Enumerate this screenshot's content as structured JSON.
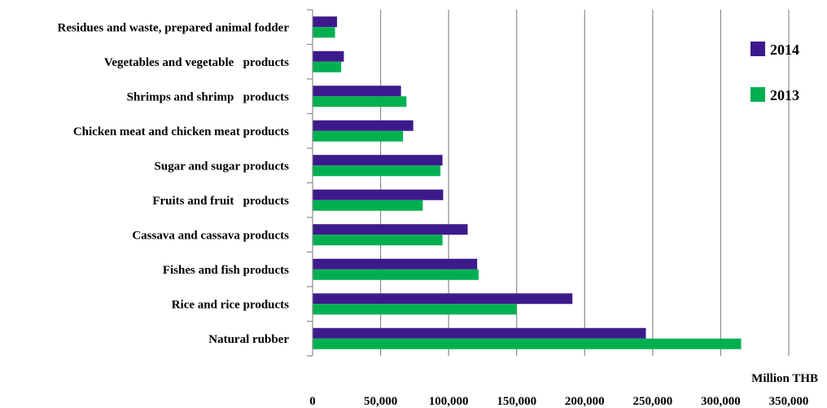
{
  "chart_data": {
    "type": "bar",
    "orientation": "horizontal",
    "categories": [
      "Natural rubber",
      "Rice and rice products",
      "Fishes and fish products",
      "Cassava and cassava products",
      "Fruits and fruit   products",
      "Sugar and sugar products",
      "Chicken meat and chicken meat products",
      "Shrimps and shrimp   products",
      "Vegetables and vegetable   products",
      "Residues and waste, prepared animal fodder"
    ],
    "series": [
      {
        "name": "2014",
        "color": "#3d1a8c",
        "values": [
          245000,
          191000,
          121000,
          114000,
          96000,
          95500,
          74000,
          65000,
          23000,
          18000
        ]
      },
      {
        "name": "2013",
        "color": "#00b050",
        "values": [
          315000,
          150000,
          122000,
          95500,
          81000,
          94000,
          66500,
          69000,
          21000,
          16500
        ]
      }
    ],
    "xlim": [
      0,
      350000
    ],
    "xticks": [
      0,
      50000,
      100000,
      150000,
      200000,
      250000,
      300000,
      350000
    ],
    "xtick_labels": [
      "0",
      "50,000",
      "100,000",
      "150,000",
      "200,000",
      "250,000",
      "300,000",
      "350,000"
    ],
    "xlabel": "Million THB",
    "ylabel": "",
    "title": "",
    "grid": "vertical",
    "legend_position": "right"
  }
}
